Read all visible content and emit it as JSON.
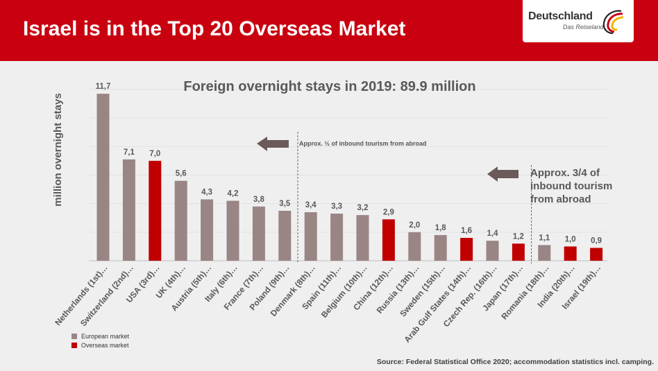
{
  "header": {
    "title": "Israel is in the Top 20 Overseas Market",
    "logo_word": "Deutschland",
    "logo_tagline": "Das Reiseland"
  },
  "colors": {
    "header": "#c8000f",
    "european": "#9a8585",
    "overseas": "#c00000",
    "panel": "#efefef"
  },
  "chart_data": {
    "type": "bar",
    "title": "Foreign overnight stays in 2019: 89.9 million",
    "ylabel": "million overnight stays",
    "xlabel": "",
    "ylim": [
      0,
      12
    ],
    "grid": true,
    "categories": [
      "Netherlands (1st)…",
      "Switzerland (2nd)…",
      "USA (3rd)…",
      "UK (4th)…",
      "Austria (5th)…",
      "Italy (6th)…",
      "France (7th)…",
      "Poland (9th)…",
      "Denmark (8th)…",
      "Spain (11th)…",
      "Belgium (10th)…",
      "China (12th)…",
      "Russia (13th)…",
      "Sweden (15th)…",
      "Arab Gulf States (14th)…",
      "Czech Rep. (16th)…",
      "Japan (17th)…",
      "Romania (18th)…",
      "India (20th)…",
      "Israel (19th)…"
    ],
    "values": [
      11.7,
      7.1,
      7.0,
      5.6,
      4.3,
      4.2,
      3.8,
      3.5,
      3.4,
      3.3,
      3.2,
      2.9,
      2.0,
      1.8,
      1.6,
      1.4,
      1.2,
      1.1,
      1.0,
      0.9
    ],
    "value_labels": [
      "11,7",
      "7,1",
      "7,0",
      "5,6",
      "4,3",
      "4,2",
      "3,8",
      "3,5",
      "3,4",
      "3,3",
      "3,2",
      "2,9",
      "2,0",
      "1,8",
      "1,6",
      "1,4",
      "1,2",
      "1,1",
      "1,0",
      "0,9"
    ],
    "market": [
      "european",
      "european",
      "overseas",
      "european",
      "european",
      "european",
      "european",
      "european",
      "european",
      "european",
      "european",
      "overseas",
      "european",
      "european",
      "overseas",
      "european",
      "overseas",
      "european",
      "overseas",
      "overseas"
    ],
    "legend": [
      {
        "key": "european",
        "label": "European market"
      },
      {
        "key": "overseas",
        "label": "Overseas market"
      }
    ],
    "annotations": {
      "half": "Approx. ½ of inbound tourism from abroad",
      "three_quarter_lines": [
        "Approx. 3/4 of",
        "inbound tourism",
        "from abroad"
      ]
    }
  },
  "source": "Source: Federal Statistical Office 2020; accommodation statistics incl. camping."
}
